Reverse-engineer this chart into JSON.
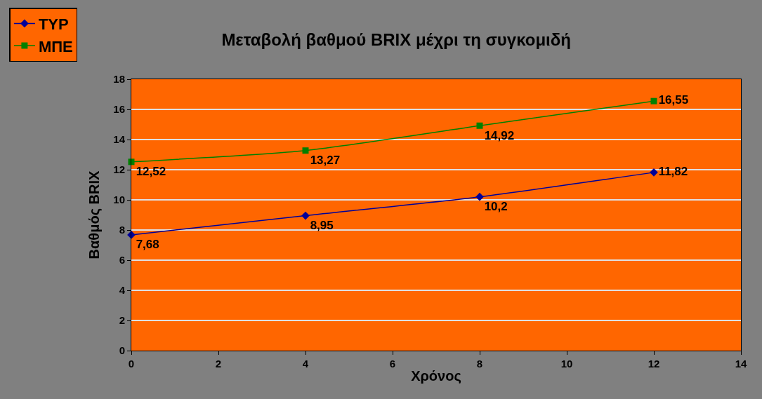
{
  "chart_data": {
    "type": "line",
    "title": "Μεταβολή βαθμού BRIX μέχρι τη συγκομιδή",
    "xlabel": "Χρόνος",
    "ylabel": "Βαθμός BRIX",
    "x": [
      0,
      4,
      8,
      12
    ],
    "series": [
      {
        "name": "ΤΥΡ",
        "color": "#000099",
        "marker": "diamond",
        "values": [
          7.68,
          8.95,
          10.2,
          11.82
        ],
        "value_labels": [
          "7,68",
          "8,95",
          "10,2",
          "11,82"
        ]
      },
      {
        "name": "ΜΠΕ",
        "color": "#008000",
        "marker": "square",
        "values": [
          12.52,
          13.27,
          14.92,
          16.55
        ],
        "value_labels": [
          "12,52",
          "13,27",
          "14,92",
          "16,55"
        ]
      }
    ],
    "xlim": [
      0,
      14
    ],
    "xticks": [
      0,
      2,
      4,
      6,
      8,
      10,
      12,
      14
    ],
    "ylim": [
      0,
      18
    ],
    "yticks": [
      0,
      2,
      4,
      6,
      8,
      10,
      12,
      14,
      16,
      18
    ],
    "grid": "y",
    "legend": "top left",
    "line_style": "solid"
  }
}
